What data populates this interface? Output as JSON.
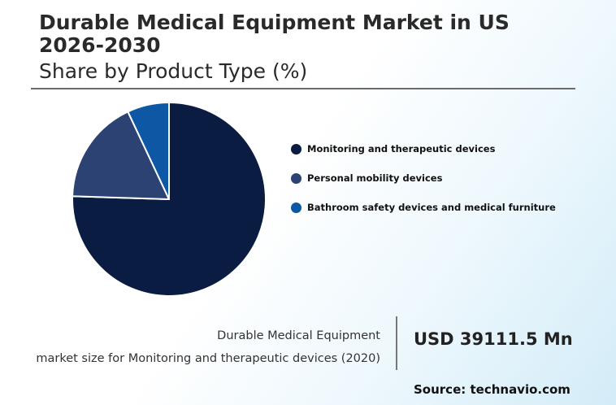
{
  "header": {
    "title": "Durable Medical Equipment Market in US 2026-2030",
    "subtitle": "Share by Product Type (%)"
  },
  "chart_data": {
    "type": "pie",
    "title": "Durable Medical Equipment Market in US 2026-2030",
    "subtitle": "Share by Product Type (%)",
    "legend_position": "right",
    "slices": [
      {
        "label": "Monitoring and therapeutic devices",
        "value": 75.5,
        "color": "#0a1c42"
      },
      {
        "label": "Personal mobility devices",
        "value": 17.5,
        "color": "#2b4272"
      },
      {
        "label": "Bathroom safety devices and medical furniture",
        "value": 7.0,
        "color": "#0d57a4"
      }
    ]
  },
  "metric": {
    "label_line1": "Durable Medical Equipment",
    "label_line2": "market size for Monitoring and therapeutic devices (2020)",
    "value": "USD 39111.5 Mn"
  },
  "footer": {
    "source": "Source: technavio.com"
  }
}
